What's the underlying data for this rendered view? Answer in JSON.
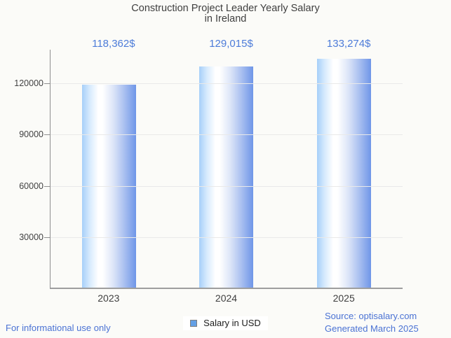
{
  "page": {
    "background": "#fbfbf8"
  },
  "chart_data": {
    "type": "bar",
    "title": "Construction Project Leader Yearly Salary in Ireland",
    "title_lines": [
      "Construction Project Leader Yearly Salary",
      "in Ireland"
    ],
    "categories": [
      "2023",
      "2024",
      "2025"
    ],
    "series": [
      {
        "name": "Salary in USD",
        "values": [
          118362,
          129015,
          133274
        ]
      }
    ],
    "value_labels": [
      "118,362$",
      "129,015$",
      "133,274$"
    ],
    "xlabel": "",
    "ylabel": "",
    "yticks": [
      30000,
      60000,
      90000,
      120000
    ],
    "ylim": [
      0,
      139500
    ],
    "grid": true,
    "legend_position": "bottom",
    "bar_gradient_stops": [
      [
        "#a6cff9",
        "0%"
      ],
      [
        "#d6eafd",
        "14%"
      ],
      [
        "#ffffff",
        "30%"
      ],
      [
        "#ffffff",
        "38%"
      ],
      [
        "#dce5f8",
        "58%"
      ],
      [
        "#aac0f0",
        "78%"
      ],
      [
        "#6f96e8",
        "100%"
      ]
    ]
  },
  "legend": {
    "label": "Salary in USD",
    "swatch_color": "#64a0e6",
    "swatch_border": "#7f7f7f"
  },
  "footer": {
    "left_note": "For informational use only",
    "source_line1": "Source: optisalary.com",
    "source_line2": "Generated March 2025"
  },
  "colors": {
    "page_bg": "#fbfbf8",
    "title_text": "#3f3f3f",
    "axis_text": "#424242",
    "value_label_text": "#4d7cd9",
    "footer_text": "#4a72d4",
    "grid_line": "#e9e9e9",
    "axis_line": "#8f8f8f",
    "baseline": "#9e9e9e"
  }
}
